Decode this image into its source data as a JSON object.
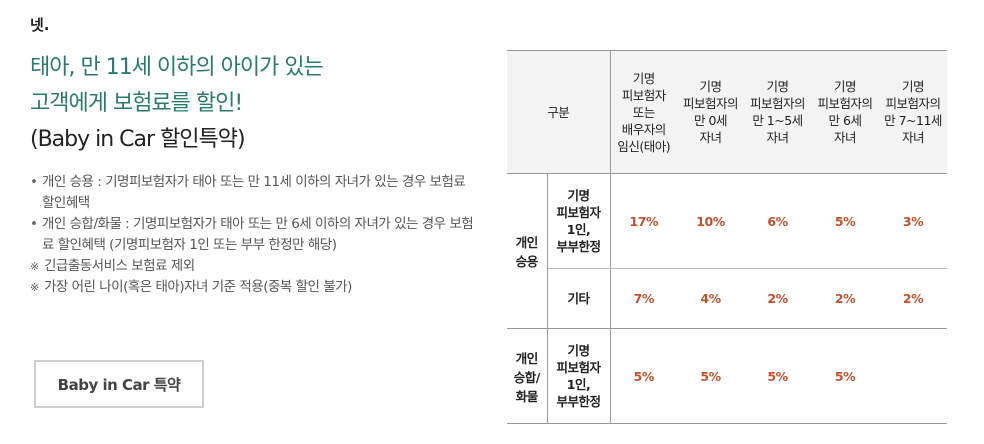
{
  "section_number": "넷.",
  "headline": {
    "line1": "태아, 만 11세 이하의 아이가 있는",
    "line2": "고객에게 보험료를 할인!",
    "line3": "(Baby in Car 할인특약)"
  },
  "bullets": [
    {
      "type": "dot",
      "text": "개인 승용 : 기명피보험자가 태아 또는 만 11세 이하의 자녀가 있는 경우 보험료 할인혜택"
    },
    {
      "type": "dot",
      "text": "개인 승합/화물 : 기명피보험자가 태아 또는 만 6세 이하의 자녀가 있는 경우 보험료 할인혜택 (기명피보험자 1인 또는 부부 한정만 해당)"
    },
    {
      "type": "note",
      "text": "긴급출동서비스 보험료 제외"
    },
    {
      "type": "note",
      "text": "가장 어린 나이(혹은 태아)자녀 기준 적용(중복 할인 불가)"
    }
  ],
  "button_label": "Baby in Car 특약",
  "table": {
    "header_group": "구분",
    "columns": [
      "기명\n피보험자\n또는\n배우자의\n임신(태아)",
      "기명\n피보험자의\n만 0세\n자녀",
      "기명\n피보험자의\n만 1~5세\n자녀",
      "기명\n피보험자의\n만 6세\n자녀",
      "기명\n피보험자의\n만 7~11세\n자녀"
    ],
    "groups": [
      {
        "category": "개인\n승용",
        "rows": [
          {
            "sub": "기명\n피보험자\n1인,\n부부한정",
            "values": [
              "17%",
              "10%",
              "6%",
              "5%",
              "3%"
            ]
          },
          {
            "sub": "기타",
            "values": [
              "7%",
              "4%",
              "2%",
              "2%",
              "2%"
            ]
          }
        ]
      },
      {
        "category": "개인\n승합/\n화물",
        "rows": [
          {
            "sub": "기명\n피보험자\n1인,\n부부한정",
            "values": [
              "5%",
              "5%",
              "5%",
              "5%",
              ""
            ]
          }
        ]
      }
    ]
  },
  "colors": {
    "accent": "#2b7a6f",
    "value": "#c0532d"
  }
}
